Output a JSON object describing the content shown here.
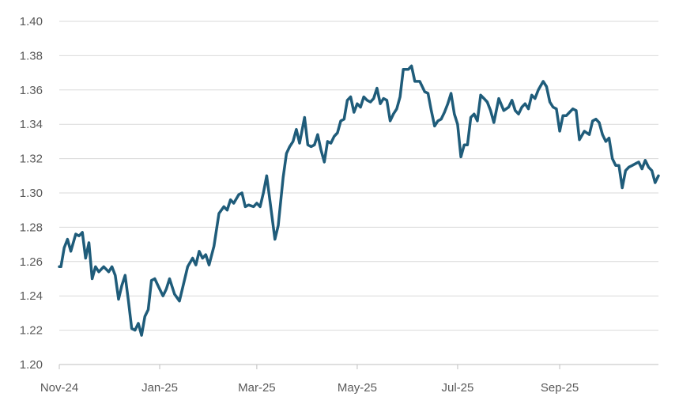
{
  "chart_data": {
    "type": "line",
    "title": "",
    "xlabel": "",
    "ylabel": "",
    "ylim": [
      1.2,
      1.4
    ],
    "y_ticks": [
      "1.20",
      "1.22",
      "1.24",
      "1.26",
      "1.28",
      "1.30",
      "1.32",
      "1.34",
      "1.36",
      "1.38",
      "1.40"
    ],
    "x_range": [
      "2024-11-01",
      "2025-10-31"
    ],
    "x_ticks": [
      {
        "date": "2024-11-01",
        "label": "Nov-24"
      },
      {
        "date": "2025-01-01",
        "label": "Jan-25"
      },
      {
        "date": "2025-03-01",
        "label": "Mar-25"
      },
      {
        "date": "2025-05-01",
        "label": "May-25"
      },
      {
        "date": "2025-07-01",
        "label": "Jul-25"
      },
      {
        "date": "2025-09-01",
        "label": "Sep-25"
      }
    ],
    "grid": true,
    "legend": "none",
    "series_color": "#1f5c7a",
    "series": [
      {
        "x": [
          "2024-11-01",
          "2024-11-02",
          "2024-11-04",
          "2024-11-06",
          "2024-11-08",
          "2024-11-11",
          "2024-11-13",
          "2024-11-15",
          "2024-11-17",
          "2024-11-19",
          "2024-11-21",
          "2024-11-23",
          "2024-11-25",
          "2024-11-28",
          "2024-12-01",
          "2024-12-03",
          "2024-12-05",
          "2024-12-07",
          "2024-12-09",
          "2024-12-11",
          "2024-12-13",
          "2024-12-15",
          "2024-12-17",
          "2024-12-19",
          "2024-12-21",
          "2024-12-23",
          "2024-12-25",
          "2024-12-27",
          "2024-12-29",
          "2024-12-31",
          "2025-01-03",
          "2025-01-05",
          "2025-01-07",
          "2025-01-10",
          "2025-01-13",
          "2025-01-15",
          "2025-01-18",
          "2025-01-21",
          "2025-01-23",
          "2025-01-25",
          "2025-01-27",
          "2025-01-29",
          "2025-01-31",
          "2025-02-03",
          "2025-02-06",
          "2025-02-09",
          "2025-02-11",
          "2025-02-13",
          "2025-02-15",
          "2025-02-18",
          "2025-02-20",
          "2025-02-22",
          "2025-02-24",
          "2025-02-27",
          "2025-03-01",
          "2025-03-03",
          "2025-03-05",
          "2025-03-07",
          "2025-03-10",
          "2025-03-12",
          "2025-03-14",
          "2025-03-17",
          "2025-03-19",
          "2025-03-21",
          "2025-03-23",
          "2025-03-25",
          "2025-03-27",
          "2025-03-30",
          "2025-04-01",
          "2025-04-03",
          "2025-04-05",
          "2025-04-07",
          "2025-04-09",
          "2025-04-11",
          "2025-04-13",
          "2025-04-15",
          "2025-04-17",
          "2025-04-19",
          "2025-04-21",
          "2025-04-23",
          "2025-04-25",
          "2025-04-27",
          "2025-04-29",
          "2025-05-01",
          "2025-05-03",
          "2025-05-05",
          "2025-05-07",
          "2025-05-09",
          "2025-05-11",
          "2025-05-13",
          "2025-05-15",
          "2025-05-17",
          "2025-05-19",
          "2025-05-21",
          "2025-05-23",
          "2025-05-25",
          "2025-05-27",
          "2025-05-29",
          "2025-06-01",
          "2025-06-03",
          "2025-06-05",
          "2025-06-08",
          "2025-06-11",
          "2025-06-13",
          "2025-06-15",
          "2025-06-17",
          "2025-06-19",
          "2025-06-21",
          "2025-06-23",
          "2025-06-25",
          "2025-06-27",
          "2025-06-29",
          "2025-07-01",
          "2025-07-03",
          "2025-07-05",
          "2025-07-07",
          "2025-07-09",
          "2025-07-11",
          "2025-07-13",
          "2025-07-15",
          "2025-07-17",
          "2025-07-19",
          "2025-07-21",
          "2025-07-23",
          "2025-07-26",
          "2025-07-29",
          "2025-08-01",
          "2025-08-03",
          "2025-08-05",
          "2025-08-07",
          "2025-08-09",
          "2025-08-11",
          "2025-08-13",
          "2025-08-15",
          "2025-08-17",
          "2025-08-19",
          "2025-08-22",
          "2025-08-24",
          "2025-08-26",
          "2025-08-28",
          "2025-08-30",
          "2025-09-01",
          "2025-09-03",
          "2025-09-05",
          "2025-09-07",
          "2025-09-09",
          "2025-09-11",
          "2025-09-13",
          "2025-09-16",
          "2025-09-19",
          "2025-09-21",
          "2025-09-23",
          "2025-09-25",
          "2025-09-27",
          "2025-09-29",
          "2025-10-01",
          "2025-10-03",
          "2025-10-05",
          "2025-10-07",
          "2025-10-09",
          "2025-10-11",
          "2025-10-13",
          "2025-10-15",
          "2025-10-17",
          "2025-10-19",
          "2025-10-21",
          "2025-10-23",
          "2025-10-25",
          "2025-10-27",
          "2025-10-29",
          "2025-10-31"
        ],
        "values": [
          1.257,
          1.257,
          1.268,
          1.273,
          1.266,
          1.276,
          1.275,
          1.277,
          1.262,
          1.271,
          1.25,
          1.257,
          1.254,
          1.257,
          1.254,
          1.257,
          1.252,
          1.238,
          1.246,
          1.252,
          1.237,
          1.221,
          1.22,
          1.224,
          1.217,
          1.228,
          1.232,
          1.249,
          1.25,
          1.246,
          1.24,
          1.244,
          1.25,
          1.241,
          1.237,
          1.245,
          1.257,
          1.262,
          1.258,
          1.266,
          1.262,
          1.264,
          1.258,
          1.269,
          1.288,
          1.292,
          1.29,
          1.296,
          1.294,
          1.299,
          1.3,
          1.292,
          1.293,
          1.292,
          1.294,
          1.292,
          1.3,
          1.31,
          1.288,
          1.273,
          1.281,
          1.309,
          1.323,
          1.327,
          1.33,
          1.337,
          1.329,
          1.344,
          1.328,
          1.327,
          1.328,
          1.334,
          1.325,
          1.318,
          1.33,
          1.329,
          1.333,
          1.335,
          1.342,
          1.343,
          1.354,
          1.356,
          1.347,
          1.352,
          1.35,
          1.356,
          1.354,
          1.353,
          1.355,
          1.361,
          1.352,
          1.355,
          1.354,
          1.342,
          1.346,
          1.349,
          1.356,
          1.372,
          1.372,
          1.374,
          1.365,
          1.365,
          1.359,
          1.358,
          1.348,
          1.339,
          1.342,
          1.343,
          1.347,
          1.352,
          1.358,
          1.346,
          1.34,
          1.321,
          1.328,
          1.328,
          1.344,
          1.346,
          1.342,
          1.357,
          1.355,
          1.353,
          1.348,
          1.341,
          1.355,
          1.348,
          1.35,
          1.354,
          1.348,
          1.346,
          1.35,
          1.352,
          1.349,
          1.357,
          1.355,
          1.36,
          1.365,
          1.362,
          1.353,
          1.35,
          1.349,
          1.336,
          1.345,
          1.345,
          1.347,
          1.349,
          1.348,
          1.331,
          1.336,
          1.334,
          1.342,
          1.343,
          1.341,
          1.334,
          1.33,
          1.332,
          1.32,
          1.316,
          1.316,
          1.303,
          1.313,
          1.315,
          1.316,
          1.317,
          1.318,
          1.314,
          1.319,
          1.315,
          1.313,
          1.306,
          1.31
        ]
      }
    ]
  }
}
